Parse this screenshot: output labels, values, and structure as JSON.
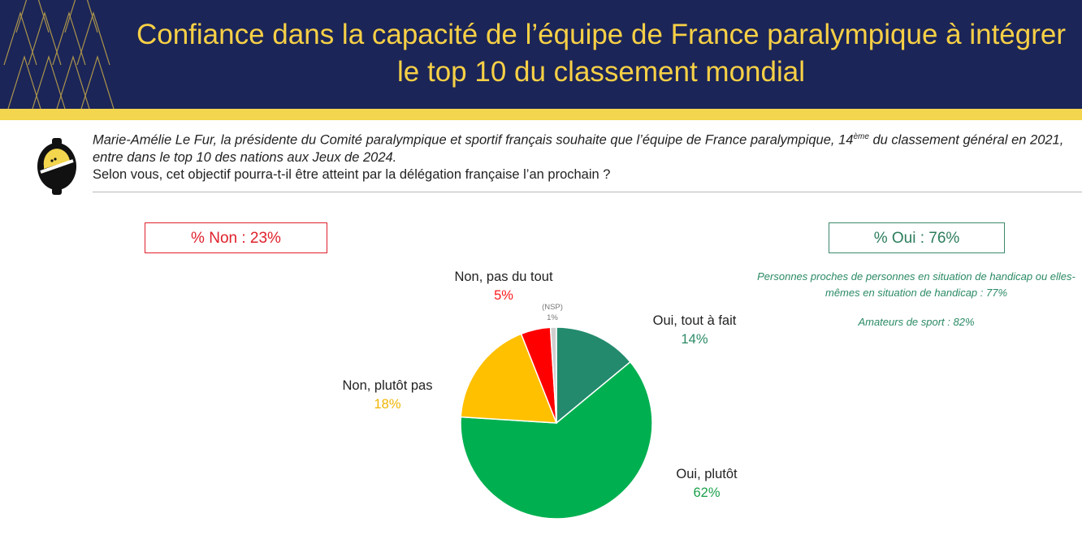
{
  "header": {
    "title_line1": "Confiance dans la capacité de l’équipe de France paralympique à intégrer",
    "title_line2": "le top 10 du classement mondial"
  },
  "intro": {
    "italic_part1": "Marie-Amélie Le Fur, la présidente du Comité paralympique et sportif français souhaite que l’équipe de France paralympique, 14",
    "superscript": "ème",
    "italic_part2": " du classement général en 2021, entre dans le top 10 des nations aux Jeux de 2024.",
    "question": "Selon vous, cet objectif pourra-t-il être atteint par la délégation française l’an prochain ?"
  },
  "summary": {
    "non": "% Non : 23%",
    "oui": "% Oui : 76%"
  },
  "notes": {
    "line1": "Personnes proches de personnes en situation de handicap ou elles-mêmes en situation de handicap : 77%",
    "line2": "Amateurs de sport : 82%"
  },
  "colors": {
    "header_bg": "#1b2558",
    "title": "#f7d046",
    "yellow_bar": "#f3d54e",
    "non_red": "#e0202b",
    "oui_green": "#2b7d5b"
  },
  "chart_data": {
    "type": "pie",
    "start": "12 o'clock, clockwise",
    "slices": [
      {
        "label": "Oui, tout à fait",
        "value": 14,
        "pct_label": "14%",
        "color": "#238a6e",
        "label_color": "#2b8a65"
      },
      {
        "label": "Oui, plutôt",
        "value": 62,
        "pct_label": "62%",
        "color": "#00b050",
        "label_color": "#1aa04a"
      },
      {
        "label": "Non, plutôt pas",
        "value": 18,
        "pct_label": "18%",
        "color": "#ffc000",
        "label_color": "#f0b400"
      },
      {
        "label": "Non, pas du tout",
        "value": 5,
        "pct_label": "5%",
        "color": "#ff0000",
        "label_color": "#ff1a1a"
      },
      {
        "label": "(NSP)",
        "value": 1,
        "pct_label": "1%",
        "color": "#d0cece",
        "label_color": "#777777"
      }
    ]
  }
}
